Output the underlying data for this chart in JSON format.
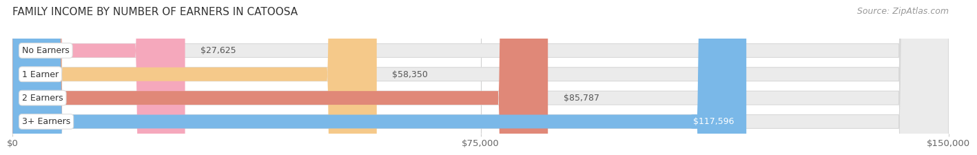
{
  "title": "FAMILY INCOME BY NUMBER OF EARNERS IN CATOOSA",
  "source": "Source: ZipAtlas.com",
  "categories": [
    "No Earners",
    "1 Earner",
    "2 Earners",
    "3+ Earners"
  ],
  "values": [
    27625,
    58350,
    85787,
    117596
  ],
  "bar_colors": [
    "#f5a8bc",
    "#f5c98a",
    "#e08878",
    "#7ab8e8"
  ],
  "label_texts": [
    "$27,625",
    "$58,350",
    "$85,787",
    "$117,596"
  ],
  "value_inside": [
    false,
    false,
    false,
    true
  ],
  "xlim": [
    0,
    150000
  ],
  "xticks": [
    0,
    75000,
    150000
  ],
  "xtick_labels": [
    "$0",
    "$75,000",
    "$150,000"
  ],
  "background_color": "#ffffff",
  "bar_bg_color": "#ebebeb",
  "bar_bg_edge_color": "#d8d8d8",
  "title_fontsize": 11,
  "source_fontsize": 9,
  "tick_fontsize": 9.5,
  "bar_label_fontsize": 9,
  "category_fontsize": 9
}
